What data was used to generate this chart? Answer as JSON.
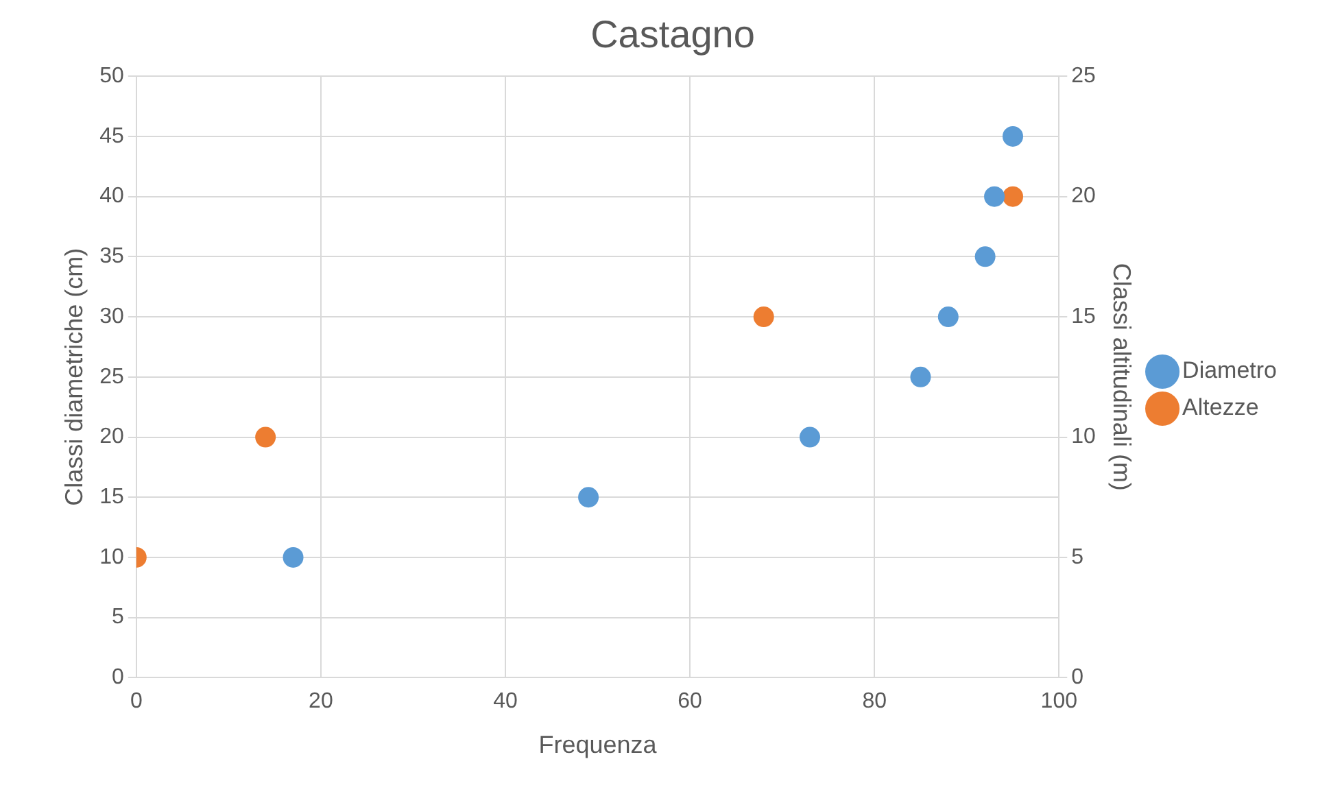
{
  "chart_data": {
    "type": "scatter",
    "title": "Castagno",
    "xlabel": "Frequenza",
    "ylabel": "Classi diametriche (cm)",
    "y2label": "Classi altitudinali (m)",
    "series": [
      {
        "name": "Diametro",
        "color": "#5b9bd5",
        "x": [
          17,
          49,
          73,
          85,
          88,
          92,
          93,
          95
        ],
        "values": [
          10,
          15,
          20,
          25,
          30,
          35,
          40,
          45
        ]
      },
      {
        "name": "Altezze",
        "color": "#ed7d31",
        "axis": "y2",
        "x": [
          0,
          14,
          68,
          95
        ],
        "values": [
          5,
          10,
          15,
          20
        ]
      }
    ],
    "xlim": [
      0,
      100
    ],
    "xticks": [
      0,
      20,
      40,
      60,
      80,
      100
    ],
    "ylim": [
      0,
      50
    ],
    "yticks": [
      0,
      5,
      10,
      15,
      20,
      25,
      30,
      35,
      40,
      45,
      50
    ],
    "y2lim": [
      0,
      25
    ],
    "y2ticks": [
      0,
      5,
      10,
      15,
      20,
      25
    ],
    "grid": true,
    "legend": "right",
    "marker": "circle"
  }
}
